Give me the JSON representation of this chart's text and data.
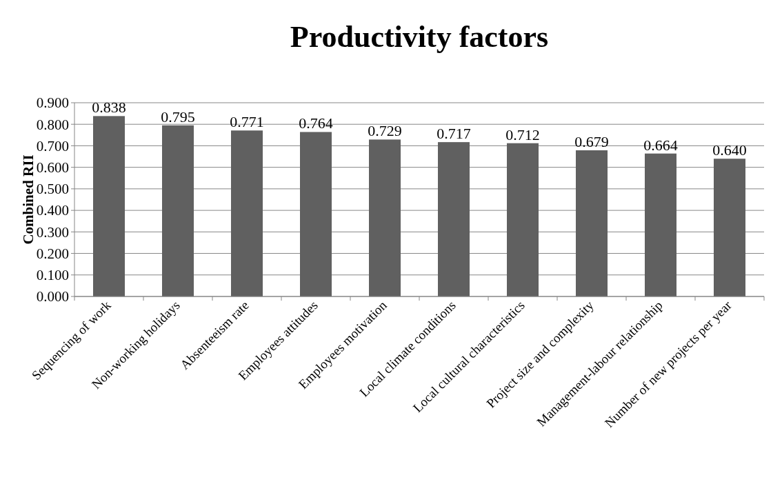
{
  "chart_data": {
    "type": "bar",
    "title": "Productivity factors",
    "ylabel": "Combined RII",
    "categories": [
      "Sequencing of work",
      "Non-working holidays",
      "Absenteeism rate",
      "Employees attitudes",
      "Employees motivation",
      "Local climate conditions",
      "Local cultural characteristics",
      "Project size and complexity",
      "Management-labour relationship",
      "Number of new projects per year"
    ],
    "values": [
      0.838,
      0.795,
      0.771,
      0.764,
      0.729,
      0.717,
      0.712,
      0.679,
      0.664,
      0.64
    ],
    "value_labels": [
      "0.838",
      "0.795",
      "0.771",
      "0.764",
      "0.729",
      "0.717",
      "0.712",
      "0.679",
      "0.664",
      "0.640"
    ],
    "color": "#606060",
    "ylim": [
      0,
      0.9
    ],
    "yticks": [
      {
        "value": 0,
        "label": "0.000"
      },
      {
        "value": 0.1,
        "label": "0.100"
      },
      {
        "value": 0.2,
        "label": "0.200"
      },
      {
        "value": 0.3,
        "label": "0.300"
      },
      {
        "value": 0.4,
        "label": "0.400"
      },
      {
        "value": 0.5,
        "label": "0.500"
      },
      {
        "value": 0.6,
        "label": "0.600"
      },
      {
        "value": 0.7,
        "label": "0.700"
      },
      {
        "value": 0.8,
        "label": "0.800"
      },
      {
        "value": 0.9,
        "label": "0.900"
      }
    ],
    "grid": "y"
  }
}
